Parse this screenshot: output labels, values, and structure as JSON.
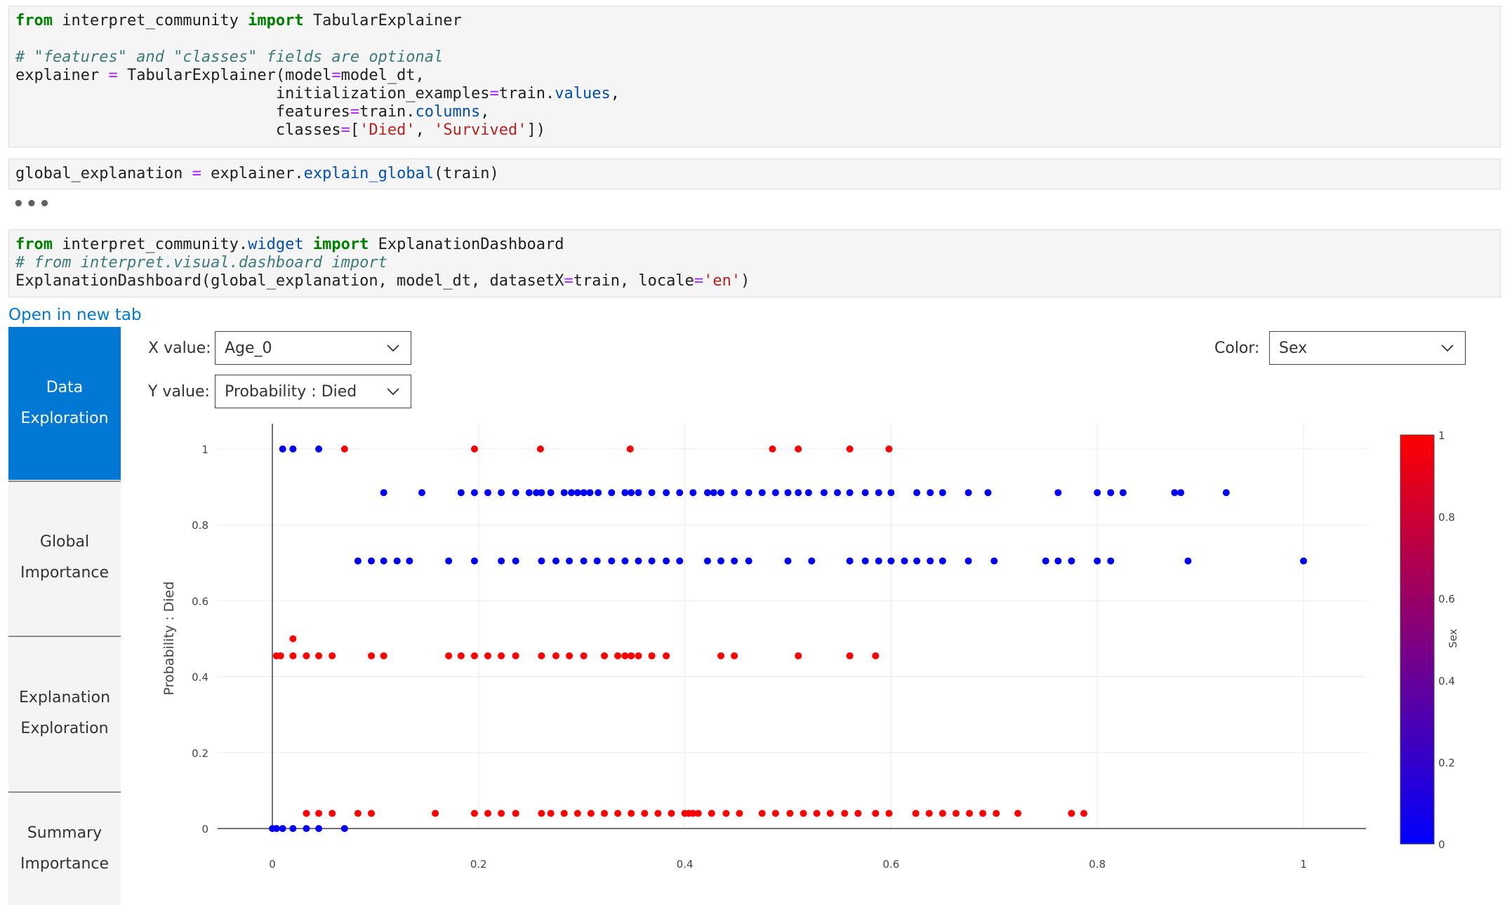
{
  "cells": {
    "cell1": {
      "line1": [
        "from",
        " interpret_community ",
        "import",
        " TabularExplainer"
      ],
      "line3": "# \"features\" and \"classes\" fields are optional",
      "line4": [
        "explainer ",
        "=",
        " TabularExplainer(model",
        "=",
        "model_dt,"
      ],
      "line5": [
        "                            initialization_examples",
        "=",
        "train.",
        "values",
        ","
      ],
      "line6": [
        "                            features",
        "=",
        "train.",
        "columns",
        ","
      ],
      "line7": [
        "                            classes",
        "=",
        "[",
        "'Died'",
        ", ",
        "'Survived'",
        "])"
      ]
    },
    "cell2": {
      "line1": [
        "global_explanation ",
        "=",
        " explainer.",
        "explain_global",
        "(train)"
      ]
    },
    "ellipsis": "•••",
    "cell3": {
      "line1": [
        "from",
        " interpret_community.",
        "widget",
        " ",
        "import",
        " ExplanationDashboard"
      ],
      "line2": "# from interpret.visual.dashboard import",
      "line3": [
        "ExplanationDashboard(global_explanation, model_dt, datasetX",
        "=",
        "train, locale",
        "=",
        "'en'",
        ")"
      ]
    }
  },
  "open_link": "Open in new tab",
  "nav": [
    {
      "label": "Data\nExploration",
      "active": true
    },
    {
      "label": "Global\nImportance",
      "active": false
    },
    {
      "label": "Explanation\nExploration",
      "active": false
    },
    {
      "label": "Summary\nImportance",
      "active": false
    }
  ],
  "controls": {
    "x_label": "X value:",
    "x_value": "Age_0",
    "y_label": "Y value:",
    "y_value": "Probability : Died",
    "color_label": "Color:",
    "color_value": "Sex"
  },
  "colors": {
    "blue": "#0000ff",
    "red": "#ff0000",
    "accent": "#0078d4"
  },
  "chart_data": {
    "type": "scatter",
    "ylabel": "Probability : Died",
    "xlabel": "",
    "xlim": [
      -0.1,
      1.06
    ],
    "ylim": [
      0,
      1
    ],
    "x_ticks": [
      "0",
      "0.2",
      "0.4",
      "0.6",
      "0.8",
      "1"
    ],
    "y_ticks": [
      "0",
      "0.2",
      "0.4",
      "0.6",
      "0.8",
      "1"
    ],
    "colorbar": {
      "title": "Sex",
      "ticks": [
        "0",
        "0.2",
        "0.4",
        "0.6",
        "0.8",
        "1"
      ],
      "range": [
        0,
        1
      ]
    },
    "series": [
      {
        "color_value": 0,
        "points": [
          [
            0.0,
            0
          ],
          [
            0.004,
            0
          ],
          [
            0.01,
            0
          ],
          [
            0.02,
            0
          ],
          [
            0.033,
            0
          ],
          [
            0.045,
            0
          ],
          [
            0.07,
            0
          ],
          [
            0.01,
            1
          ],
          [
            0.02,
            1
          ],
          [
            0.045,
            1
          ],
          [
            0.108,
            0.885
          ],
          [
            0.145,
            0.885
          ],
          [
            0.183,
            0.885
          ],
          [
            0.196,
            0.885
          ],
          [
            0.209,
            0.885
          ],
          [
            0.222,
            0.885
          ],
          [
            0.236,
            0.885
          ],
          [
            0.249,
            0.885
          ],
          [
            0.256,
            0.885
          ],
          [
            0.261,
            0.885
          ],
          [
            0.27,
            0.885
          ],
          [
            0.283,
            0.885
          ],
          [
            0.29,
            0.885
          ],
          [
            0.296,
            0.885
          ],
          [
            0.302,
            0.885
          ],
          [
            0.308,
            0.885
          ],
          [
            0.316,
            0.885
          ],
          [
            0.329,
            0.885
          ],
          [
            0.342,
            0.885
          ],
          [
            0.348,
            0.885
          ],
          [
            0.355,
            0.885
          ],
          [
            0.368,
            0.885
          ],
          [
            0.382,
            0.885
          ],
          [
            0.395,
            0.885
          ],
          [
            0.408,
            0.885
          ],
          [
            0.422,
            0.885
          ],
          [
            0.428,
            0.885
          ],
          [
            0.435,
            0.885
          ],
          [
            0.448,
            0.885
          ],
          [
            0.462,
            0.885
          ],
          [
            0.475,
            0.885
          ],
          [
            0.488,
            0.885
          ],
          [
            0.5,
            0.885
          ],
          [
            0.51,
            0.885
          ],
          [
            0.52,
            0.885
          ],
          [
            0.535,
            0.885
          ],
          [
            0.548,
            0.885
          ],
          [
            0.56,
            0.885
          ],
          [
            0.575,
            0.885
          ],
          [
            0.588,
            0.885
          ],
          [
            0.6,
            0.885
          ],
          [
            0.625,
            0.885
          ],
          [
            0.638,
            0.885
          ],
          [
            0.65,
            0.885
          ],
          [
            0.675,
            0.885
          ],
          [
            0.694,
            0.885
          ],
          [
            0.762,
            0.885
          ],
          [
            0.8,
            0.885
          ],
          [
            0.813,
            0.885
          ],
          [
            0.825,
            0.885
          ],
          [
            0.875,
            0.885
          ],
          [
            0.881,
            0.885
          ],
          [
            0.925,
            0.885
          ],
          [
            0.083,
            0.705
          ],
          [
            0.096,
            0.705
          ],
          [
            0.108,
            0.705
          ],
          [
            0.121,
            0.705
          ],
          [
            0.133,
            0.705
          ],
          [
            0.171,
            0.705
          ],
          [
            0.196,
            0.705
          ],
          [
            0.222,
            0.705
          ],
          [
            0.236,
            0.705
          ],
          [
            0.261,
            0.705
          ],
          [
            0.275,
            0.705
          ],
          [
            0.288,
            0.705
          ],
          [
            0.302,
            0.705
          ],
          [
            0.315,
            0.705
          ],
          [
            0.329,
            0.705
          ],
          [
            0.342,
            0.705
          ],
          [
            0.355,
            0.705
          ],
          [
            0.368,
            0.705
          ],
          [
            0.382,
            0.705
          ],
          [
            0.395,
            0.705
          ],
          [
            0.422,
            0.705
          ],
          [
            0.435,
            0.705
          ],
          [
            0.448,
            0.705
          ],
          [
            0.462,
            0.705
          ],
          [
            0.5,
            0.705
          ],
          [
            0.523,
            0.705
          ],
          [
            0.56,
            0.705
          ],
          [
            0.575,
            0.705
          ],
          [
            0.588,
            0.705
          ],
          [
            0.6,
            0.705
          ],
          [
            0.613,
            0.705
          ],
          [
            0.625,
            0.705
          ],
          [
            0.638,
            0.705
          ],
          [
            0.65,
            0.705
          ],
          [
            0.675,
            0.705
          ],
          [
            0.7,
            0.705
          ],
          [
            0.75,
            0.705
          ],
          [
            0.762,
            0.705
          ],
          [
            0.775,
            0.705
          ],
          [
            0.8,
            0.705
          ],
          [
            0.813,
            0.705
          ],
          [
            0.888,
            0.705
          ],
          [
            1.0,
            0.705
          ]
        ]
      },
      {
        "color_value": 1,
        "points": [
          [
            0.07,
            1
          ],
          [
            0.196,
            1
          ],
          [
            0.26,
            1
          ],
          [
            0.347,
            1
          ],
          [
            0.485,
            1
          ],
          [
            0.51,
            1
          ],
          [
            0.56,
            1
          ],
          [
            0.598,
            1
          ],
          [
            0.02,
            0.5
          ],
          [
            0.004,
            0.455
          ],
          [
            0.008,
            0.455
          ],
          [
            0.02,
            0.455
          ],
          [
            0.033,
            0.455
          ],
          [
            0.045,
            0.455
          ],
          [
            0.058,
            0.455
          ],
          [
            0.096,
            0.455
          ],
          [
            0.108,
            0.455
          ],
          [
            0.171,
            0.455
          ],
          [
            0.183,
            0.455
          ],
          [
            0.196,
            0.455
          ],
          [
            0.209,
            0.455
          ],
          [
            0.222,
            0.455
          ],
          [
            0.236,
            0.455
          ],
          [
            0.261,
            0.455
          ],
          [
            0.275,
            0.455
          ],
          [
            0.288,
            0.455
          ],
          [
            0.302,
            0.455
          ],
          [
            0.322,
            0.455
          ],
          [
            0.335,
            0.455
          ],
          [
            0.342,
            0.455
          ],
          [
            0.348,
            0.455
          ],
          [
            0.355,
            0.455
          ],
          [
            0.368,
            0.455
          ],
          [
            0.382,
            0.455
          ],
          [
            0.435,
            0.455
          ],
          [
            0.448,
            0.455
          ],
          [
            0.51,
            0.455
          ],
          [
            0.56,
            0.455
          ],
          [
            0.585,
            0.455
          ],
          [
            0.033,
            0.04
          ],
          [
            0.045,
            0.04
          ],
          [
            0.058,
            0.04
          ],
          [
            0.083,
            0.04
          ],
          [
            0.096,
            0.04
          ],
          [
            0.158,
            0.04
          ],
          [
            0.196,
            0.04
          ],
          [
            0.209,
            0.04
          ],
          [
            0.222,
            0.04
          ],
          [
            0.236,
            0.04
          ],
          [
            0.261,
            0.04
          ],
          [
            0.27,
            0.04
          ],
          [
            0.283,
            0.04
          ],
          [
            0.296,
            0.04
          ],
          [
            0.309,
            0.04
          ],
          [
            0.322,
            0.04
          ],
          [
            0.335,
            0.04
          ],
          [
            0.348,
            0.04
          ],
          [
            0.361,
            0.04
          ],
          [
            0.374,
            0.04
          ],
          [
            0.387,
            0.04
          ],
          [
            0.4,
            0.04
          ],
          [
            0.404,
            0.04
          ],
          [
            0.408,
            0.04
          ],
          [
            0.413,
            0.04
          ],
          [
            0.426,
            0.04
          ],
          [
            0.44,
            0.04
          ],
          [
            0.453,
            0.04
          ],
          [
            0.475,
            0.04
          ],
          [
            0.488,
            0.04
          ],
          [
            0.502,
            0.04
          ],
          [
            0.515,
            0.04
          ],
          [
            0.528,
            0.04
          ],
          [
            0.541,
            0.04
          ],
          [
            0.555,
            0.04
          ],
          [
            0.568,
            0.04
          ],
          [
            0.585,
            0.04
          ],
          [
            0.598,
            0.04
          ],
          [
            0.624,
            0.04
          ],
          [
            0.637,
            0.04
          ],
          [
            0.65,
            0.04
          ],
          [
            0.663,
            0.04
          ],
          [
            0.676,
            0.04
          ],
          [
            0.689,
            0.04
          ],
          [
            0.702,
            0.04
          ],
          [
            0.723,
            0.04
          ],
          [
            0.775,
            0.04
          ],
          [
            0.787,
            0.04
          ]
        ]
      }
    ]
  }
}
